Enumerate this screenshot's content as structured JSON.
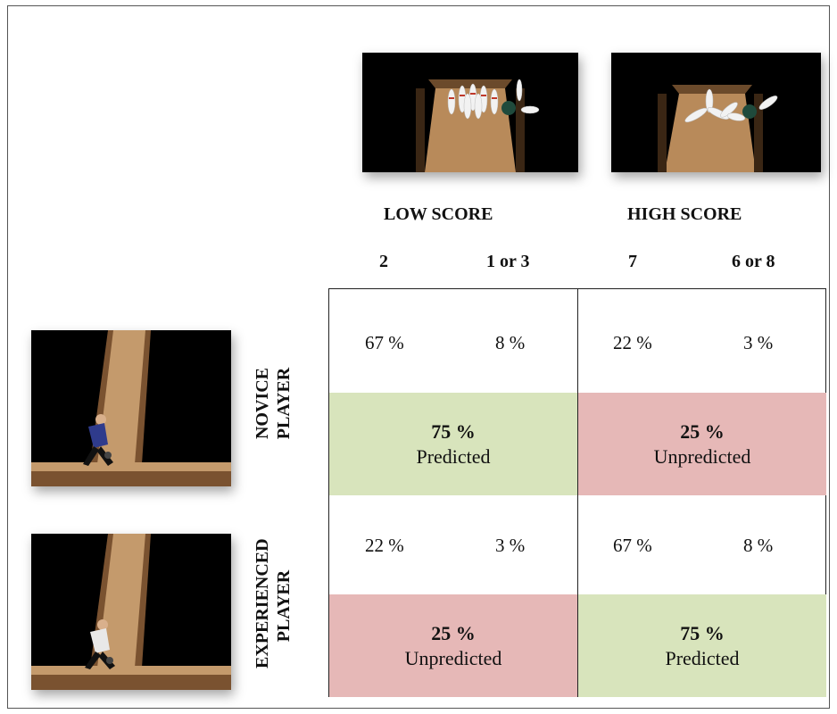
{
  "columns": {
    "low_score": {
      "label": "LOW SCORE",
      "scores": [
        "2",
        "1 or 3"
      ]
    },
    "high_score": {
      "label": "HIGH SCORE",
      "scores": [
        "7",
        "6 or 8"
      ]
    }
  },
  "rows": [
    {
      "label_line1": "NOVICE",
      "label_line2": "PLAYER",
      "percentages": [
        "67 %",
        "8 %",
        "22 %",
        "3 %"
      ],
      "low_block": {
        "percent": "75 %",
        "text": "Predicted",
        "color": "#d8e4bc"
      },
      "high_block": {
        "percent": "25 %",
        "text": "Unpredicted",
        "color": "#e6b8b7"
      }
    },
    {
      "label_line1": "EXPERIENCED",
      "label_line2": "PLAYER",
      "percentages": [
        "22 %",
        "3 %",
        "67 %",
        "8 %"
      ],
      "low_block": {
        "percent": "25 %",
        "text": "Unpredicted",
        "color": "#e6b8b7"
      },
      "high_block": {
        "percent": "75 %",
        "text": "Predicted",
        "color": "#d8e4bc"
      }
    }
  ],
  "images": {
    "low_score_pins": "few pins knocked down",
    "high_score_pins": "many pins knocked down",
    "novice_bowler": "bowler in blue shirt",
    "experienced_bowler": "bowler in white shirt"
  }
}
